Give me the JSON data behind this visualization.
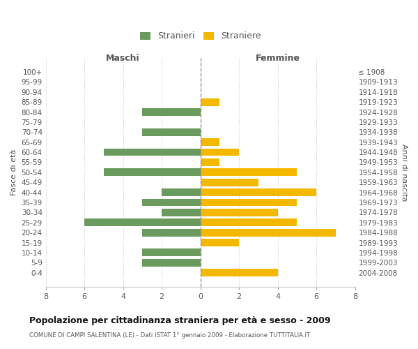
{
  "age_groups": [
    "100+",
    "95-99",
    "90-94",
    "85-89",
    "80-84",
    "75-79",
    "70-74",
    "65-69",
    "60-64",
    "55-59",
    "50-54",
    "45-49",
    "40-44",
    "35-39",
    "30-34",
    "25-29",
    "20-24",
    "15-19",
    "10-14",
    "5-9",
    "0-4"
  ],
  "birth_years": [
    "≤ 1908",
    "1909-1913",
    "1914-1918",
    "1919-1923",
    "1924-1928",
    "1929-1933",
    "1934-1938",
    "1939-1943",
    "1944-1948",
    "1949-1953",
    "1954-1958",
    "1959-1963",
    "1964-1968",
    "1969-1973",
    "1974-1978",
    "1979-1983",
    "1984-1988",
    "1989-1993",
    "1994-1998",
    "1999-2003",
    "2004-2008"
  ],
  "males": [
    0,
    0,
    0,
    0,
    3,
    0,
    3,
    0,
    5,
    0,
    5,
    0,
    2,
    3,
    2,
    6,
    3,
    0,
    3,
    3,
    0
  ],
  "females": [
    0,
    0,
    0,
    1,
    0,
    0,
    0,
    1,
    2,
    1,
    5,
    3,
    6,
    5,
    4,
    5,
    7,
    2,
    0,
    0,
    4
  ],
  "male_color": "#6b9a5e",
  "female_color": "#f5b800",
  "grid_color": "#cccccc",
  "center_line_color": "#999999",
  "title": "Popolazione per cittadinanza straniera per età e sesso - 2009",
  "subtitle": "COMUNE DI CAMPI SALENTINA (LE) - Dati ISTAT 1° gennaio 2009 - Elaborazione TUTTITALIA.IT",
  "label_maschi": "Maschi",
  "label_femmine": "Femmine",
  "ylabel_left": "Fasce di età",
  "ylabel_right": "Anni di nascita",
  "legend_male": "Stranieri",
  "legend_female": "Straniere",
  "xlim": 8,
  "bar_height": 0.75,
  "background_color": "#ffffff",
  "text_color": "#555555",
  "title_color": "#111111",
  "subtitle_color": "#555555"
}
